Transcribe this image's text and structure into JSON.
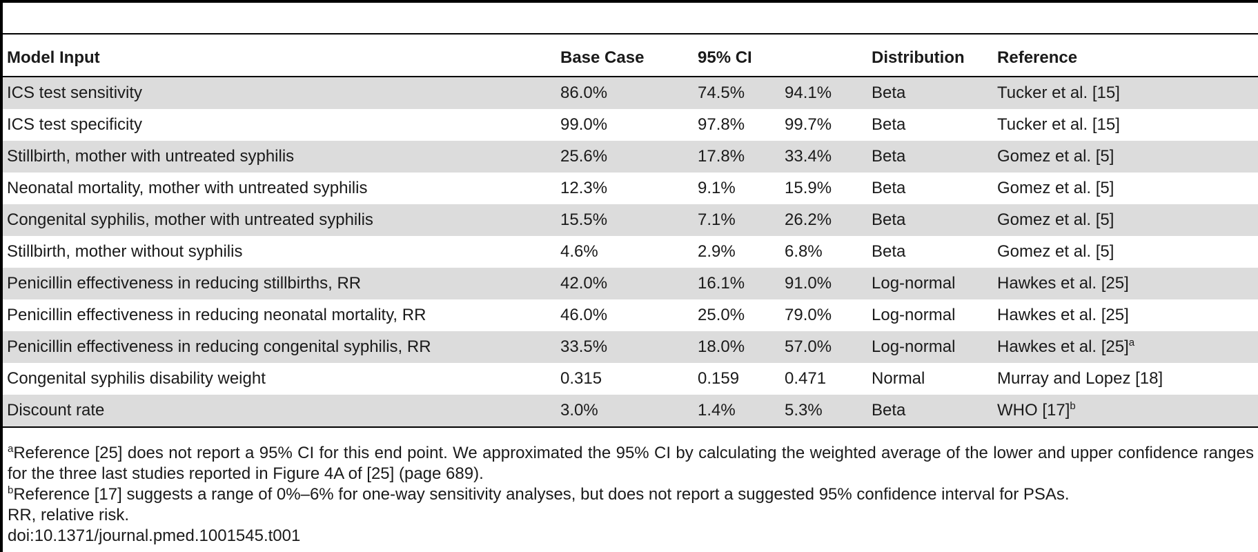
{
  "table": {
    "headers": {
      "model_input": "Model Input",
      "base_case": "Base Case",
      "ci": "95% CI",
      "distribution": "Distribution",
      "reference": "Reference"
    },
    "rows": [
      {
        "input": "ICS test sensitivity",
        "base": "86.0%",
        "ci_low": "74.5%",
        "ci_high": "94.1%",
        "distribution": "Beta",
        "reference": "Tucker et al. [15]",
        "ref_sup": ""
      },
      {
        "input": "ICS test specificity",
        "base": "99.0%",
        "ci_low": "97.8%",
        "ci_high": "99.7%",
        "distribution": "Beta",
        "reference": "Tucker et al. [15]",
        "ref_sup": ""
      },
      {
        "input": "Stillbirth, mother with untreated syphilis",
        "base": "25.6%",
        "ci_low": "17.8%",
        "ci_high": "33.4%",
        "distribution": "Beta",
        "reference": "Gomez et al. [5]",
        "ref_sup": ""
      },
      {
        "input": "Neonatal mortality, mother with untreated syphilis",
        "base": "12.3%",
        "ci_low": "9.1%",
        "ci_high": "15.9%",
        "distribution": "Beta",
        "reference": "Gomez et al. [5]",
        "ref_sup": ""
      },
      {
        "input": "Congenital syphilis, mother with untreated syphilis",
        "base": "15.5%",
        "ci_low": "7.1%",
        "ci_high": "26.2%",
        "distribution": "Beta",
        "reference": "Gomez et al. [5]",
        "ref_sup": ""
      },
      {
        "input": "Stillbirth, mother without syphilis",
        "base": "4.6%",
        "ci_low": "2.9%",
        "ci_high": "6.8%",
        "distribution": "Beta",
        "reference": "Gomez et al. [5]",
        "ref_sup": ""
      },
      {
        "input": "Penicillin effectiveness in reducing stillbirths, RR",
        "base": "42.0%",
        "ci_low": "16.1%",
        "ci_high": "91.0%",
        "distribution": "Log-normal",
        "reference": "Hawkes et al. [25]",
        "ref_sup": ""
      },
      {
        "input": "Penicillin effectiveness in reducing neonatal mortality, RR",
        "base": "46.0%",
        "ci_low": "25.0%",
        "ci_high": "79.0%",
        "distribution": "Log-normal",
        "reference": "Hawkes et al. [25]",
        "ref_sup": ""
      },
      {
        "input": "Penicillin effectiveness in reducing congenital syphilis, RR",
        "base": "33.5%",
        "ci_low": "18.0%",
        "ci_high": "57.0%",
        "distribution": "Log-normal",
        "reference": "Hawkes et al. [25]",
        "ref_sup": "a"
      },
      {
        "input": "Congenital syphilis disability weight",
        "base": "0.315",
        "ci_low": "0.159",
        "ci_high": "0.471",
        "distribution": "Normal",
        "reference": "Murray and Lopez [18]",
        "ref_sup": ""
      },
      {
        "input": "Discount rate",
        "base": "3.0%",
        "ci_low": "1.4%",
        "ci_high": "5.3%",
        "distribution": "Beta",
        "reference": "WHO [17]",
        "ref_sup": "b"
      }
    ]
  },
  "footnotes": {
    "a_marker": "a",
    "a_text": "Reference [25] does not report a 95% CI for this end point. We approximated the 95% CI by calculating the weighted average of the lower and upper confidence ranges for the three last studies reported in Figure 4A of [25] (page 689).",
    "b_marker": "b",
    "b_text": "Reference [17] suggests a range of 0%–6% for one-way sensitivity analyses, but does not report a suggested 95% confidence interval for PSAs.",
    "rr": "RR, relative risk.",
    "doi": "doi:10.1371/journal.pmed.1001545.t001"
  }
}
